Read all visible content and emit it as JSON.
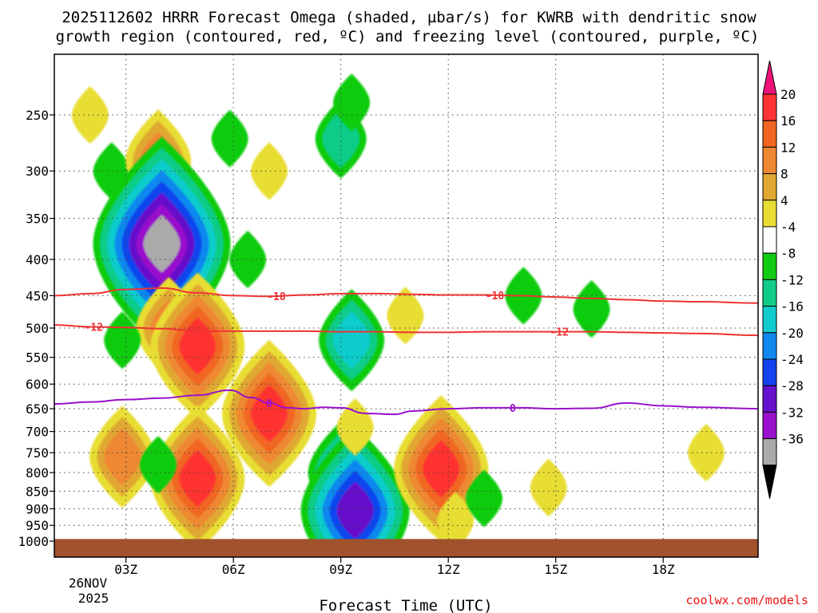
{
  "chart_data": {
    "type": "contour",
    "title_line1": "2025112602 HRRR Forecast Omega (shaded, µbar/s) for KWRB with dendritic snow",
    "title_line2": "growth region (contoured, red, ºC) and freezing level (contoured, purple, ºC)",
    "xlabel": "Forecast Time (UTC)",
    "ylabel": "",
    "x_unit": "forecast hour (UTC)",
    "xlim": [
      1.0,
      20.65
    ],
    "x_ticks": [
      {
        "x": 3,
        "label": "03Z"
      },
      {
        "x": 6,
        "label": "06Z"
      },
      {
        "x": 9,
        "label": "09Z"
      },
      {
        "x": 12,
        "label": "12Z"
      },
      {
        "x": 15,
        "label": "15Z"
      },
      {
        "x": 18,
        "label": "18Z"
      }
    ],
    "x_date_line1": "26NOV",
    "x_date_line2": "2025",
    "y_unit": "hPa",
    "y_ticks": [
      250,
      300,
      350,
      400,
      450,
      500,
      550,
      600,
      650,
      700,
      750,
      800,
      850,
      900,
      950,
      1000
    ],
    "ground_pressure": 993,
    "colorbar": {
      "labels": [
        "20",
        "16",
        "12",
        "8",
        "4",
        "-4",
        "-8",
        "-12",
        "-16",
        "-20",
        "-24",
        "-28",
        "-32",
        "-36"
      ],
      "colors": [
        "#ee1177",
        "#ff3333",
        "#f06620",
        "#ee8833",
        "#e0a833",
        "#e8dd33",
        "#ffffff",
        "#11cc11",
        "#11cc88",
        "#11cccc",
        "#1188ee",
        "#1144ee",
        "#6611cc",
        "#9911cc",
        "#aaaaaa",
        "#000000"
      ]
    },
    "omega_blobs": [
      {
        "x": 2.0,
        "p": 250,
        "peak": 4
      },
      {
        "x": 2.6,
        "p": 300,
        "peak": -4
      },
      {
        "x": 3.9,
        "p": 290,
        "peak": 12
      },
      {
        "x": 4.0,
        "p": 380,
        "peak": -32
      },
      {
        "x": 4.2,
        "p": 500,
        "peak": 12
      },
      {
        "x": 5.0,
        "p": 530,
        "peak": 20
      },
      {
        "x": 5.0,
        "p": 815,
        "peak": 20
      },
      {
        "x": 2.9,
        "p": 760,
        "peak": 12
      },
      {
        "x": 3.9,
        "p": 780,
        "peak": -4
      },
      {
        "x": 5.9,
        "p": 270,
        "peak": -4
      },
      {
        "x": 6.4,
        "p": 400,
        "peak": -4
      },
      {
        "x": 7.0,
        "p": 660,
        "peak": 20
      },
      {
        "x": 7.0,
        "p": 300,
        "peak": 4
      },
      {
        "x": 9.0,
        "p": 270,
        "peak": -8
      },
      {
        "x": 9.3,
        "p": 240,
        "peak": -4
      },
      {
        "x": 9.3,
        "p": 520,
        "peak": -12
      },
      {
        "x": 9.0,
        "p": 800,
        "peak": -12
      },
      {
        "x": 9.4,
        "p": 905,
        "peak": -24
      },
      {
        "x": 9.4,
        "p": 690,
        "peak": 4
      },
      {
        "x": 10.8,
        "p": 480,
        "peak": 4
      },
      {
        "x": 11.8,
        "p": 790,
        "peak": 20
      },
      {
        "x": 12.2,
        "p": 935,
        "peak": 4
      },
      {
        "x": 13.0,
        "p": 870,
        "peak": -4
      },
      {
        "x": 14.1,
        "p": 450,
        "peak": -4
      },
      {
        "x": 14.8,
        "p": 840,
        "peak": 4
      },
      {
        "x": 16.0,
        "p": 470,
        "peak": -4
      },
      {
        "x": 19.2,
        "p": 750,
        "peak": 4
      },
      {
        "x": 2.9,
        "p": 520,
        "peak": -4
      }
    ],
    "contours": [
      {
        "name": "dendritic-minus-18",
        "value": "-18",
        "color": "#ee3333",
        "x": [
          1.0,
          2.0,
          3.0,
          4.0,
          5.0,
          6.0,
          7.0,
          8.0,
          9.0,
          10.0,
          11.0,
          12.0,
          13.0,
          14.0,
          15.0,
          16.0,
          17.0,
          18.0,
          19.0,
          20.65
        ],
        "p": [
          450,
          447,
          441,
          439,
          446,
          450,
          451,
          449,
          447,
          447,
          448,
          449,
          449,
          450,
          452,
          454,
          456,
          458,
          459,
          461
        ],
        "labels_at": [
          7.2,
          13.3
        ]
      },
      {
        "name": "dendritic-minus-12",
        "value": "-12",
        "color": "#ee3333",
        "x": [
          1.0,
          2.0,
          3.0,
          4.0,
          5.0,
          6.0,
          7.0,
          8.0,
          9.0,
          10.0,
          11.0,
          12.0,
          13.0,
          14.0,
          15.0,
          16.0,
          17.0,
          18.0,
          19.0,
          20.65
        ],
        "p": [
          495,
          498,
          499,
          501,
          505,
          505,
          505,
          505,
          506,
          506,
          507,
          507,
          506,
          506,
          506,
          506,
          507,
          508,
          509,
          512
        ],
        "labels_at": [
          2.1,
          15.1
        ]
      },
      {
        "name": "freezing-level-0",
        "value": "0",
        "color": "#9911cc",
        "x": [
          1.0,
          2.0,
          3.0,
          4.0,
          5.0,
          5.9,
          6.5,
          7.0,
          7.5,
          8.0,
          8.5,
          9.0,
          9.7,
          10.5,
          11.0,
          12.0,
          13.0,
          14.0,
          15.0,
          16.0,
          17.0,
          18.0,
          19.0,
          20.65
        ],
        "p": [
          640,
          636,
          631,
          628,
          622,
          612,
          627,
          638,
          648,
          650,
          647,
          648,
          660,
          662,
          655,
          650,
          648,
          648,
          650,
          649,
          638,
          644,
          647,
          650
        ],
        "labels_at": [
          7.0,
          13.8
        ]
      }
    ]
  },
  "credit": "coolwx.com/models"
}
